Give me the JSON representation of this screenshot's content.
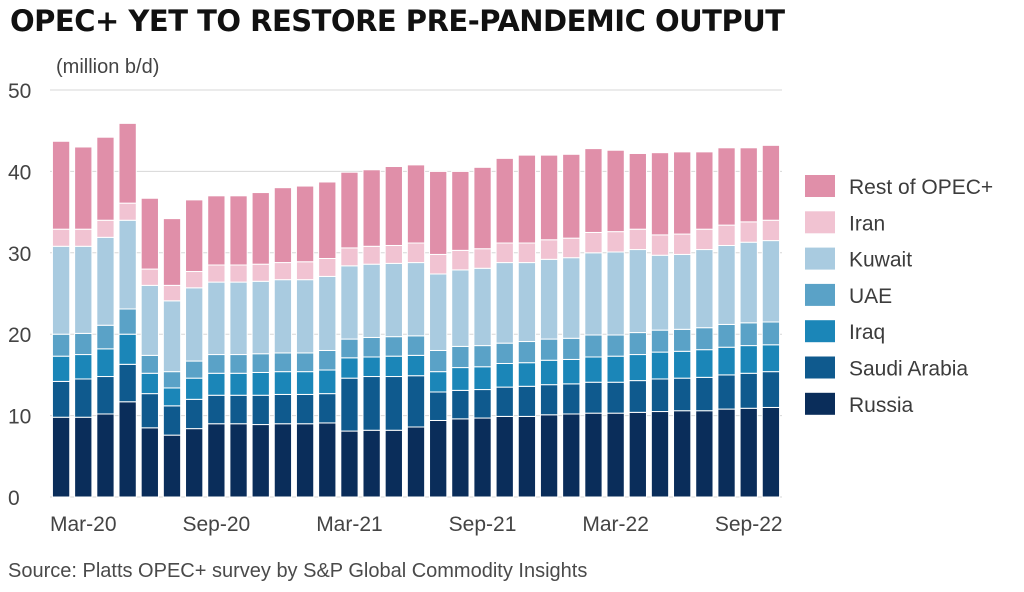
{
  "chart_data": {
    "type": "bar",
    "stacked": true,
    "title": "OPEC+ YET TO RESTORE PRE-PANDEMIC OUTPUT",
    "ylabel": "(million b/d)",
    "xlabel": "",
    "ylim": [
      0,
      50
    ],
    "yticks": [
      0,
      10,
      20,
      30,
      40,
      50
    ],
    "grid": true,
    "legend_position": "right",
    "source": "Source: Platts OPEC+ survey by S&P Global Commodity Insights",
    "x_tick_labels": [
      {
        "index": 1,
        "label": "Mar-20"
      },
      {
        "index": 7,
        "label": "Sep-20"
      },
      {
        "index": 13,
        "label": "Mar-21"
      },
      {
        "index": 19,
        "label": "Sep-21"
      },
      {
        "index": 25,
        "label": "Mar-22"
      },
      {
        "index": 31,
        "label": "Sep-22"
      }
    ],
    "series": [
      {
        "name": "Russia",
        "color": "#0a2d5a",
        "values": [
          9.8,
          9.8,
          10.2,
          11.7,
          8.5,
          7.6,
          8.4,
          9.0,
          9.0,
          8.9,
          9.0,
          9.0,
          9.1,
          8.1,
          8.2,
          8.2,
          8.6,
          9.4,
          9.6,
          9.7,
          9.9,
          9.9,
          10.1,
          10.2,
          10.3,
          10.3,
          10.4,
          10.5,
          10.6,
          10.6,
          10.8,
          10.9,
          11.0
        ]
      },
      {
        "name": "Saudi Arabia",
        "color": "#0f5a8e",
        "values": [
          4.4,
          4.7,
          4.6,
          4.6,
          4.2,
          3.6,
          3.6,
          3.5,
          3.5,
          3.6,
          3.6,
          3.6,
          3.6,
          6.5,
          6.6,
          6.6,
          6.3,
          3.5,
          3.5,
          3.5,
          3.6,
          3.7,
          3.7,
          3.7,
          3.8,
          3.8,
          3.9,
          4.0,
          4.0,
          4.1,
          4.2,
          4.3,
          4.4
        ]
      },
      {
        "name": "Iraq",
        "color": "#1b86b8",
        "values": [
          3.1,
          3.0,
          3.4,
          3.7,
          2.5,
          2.2,
          2.6,
          2.7,
          2.7,
          2.8,
          2.8,
          2.8,
          2.9,
          2.5,
          2.4,
          2.5,
          2.5,
          2.5,
          2.8,
          2.8,
          2.9,
          2.9,
          3.0,
          3.0,
          3.1,
          3.2,
          3.2,
          3.3,
          3.3,
          3.4,
          3.4,
          3.4,
          3.3
        ]
      },
      {
        "name": "UAE",
        "color": "#5aa2c7",
        "values": [
          2.7,
          2.6,
          2.9,
          3.1,
          2.2,
          2.0,
          2.1,
          2.3,
          2.3,
          2.3,
          2.3,
          2.3,
          2.4,
          2.3,
          2.4,
          2.4,
          2.4,
          2.6,
          2.6,
          2.6,
          2.5,
          2.6,
          2.6,
          2.6,
          2.7,
          2.6,
          2.7,
          2.7,
          2.7,
          2.7,
          2.8,
          2.8,
          2.8
        ]
      },
      {
        "name": "Kuwait",
        "color": "#a9cbe0",
        "values": [
          10.8,
          10.7,
          10.8,
          10.9,
          8.6,
          8.7,
          9.0,
          8.9,
          8.9,
          8.9,
          9.0,
          9.0,
          9.1,
          9.0,
          9.0,
          9.0,
          9.0,
          9.4,
          9.4,
          9.5,
          9.9,
          9.7,
          9.8,
          9.9,
          10.1,
          10.2,
          10.2,
          9.2,
          9.2,
          9.6,
          9.7,
          9.9,
          10.0
        ]
      },
      {
        "name": "Iran",
        "color": "#f1c3d2",
        "values": [
          2.1,
          2.1,
          2.1,
          2.1,
          2.0,
          1.9,
          2.0,
          2.1,
          2.1,
          2.1,
          2.1,
          2.2,
          2.2,
          2.2,
          2.2,
          2.2,
          2.4,
          2.4,
          2.4,
          2.4,
          2.4,
          2.4,
          2.4,
          2.4,
          2.5,
          2.5,
          2.5,
          2.5,
          2.5,
          2.5,
          2.5,
          2.5,
          2.5
        ]
      },
      {
        "name": "Rest of OPEC+",
        "color": "#e08fa9",
        "values": [
          10.8,
          10.1,
          10.2,
          9.8,
          8.7,
          8.2,
          8.8,
          8.5,
          8.5,
          8.8,
          9.2,
          9.3,
          9.4,
          9.3,
          9.4,
          9.7,
          9.6,
          10.2,
          9.7,
          10.0,
          10.4,
          10.8,
          10.4,
          10.3,
          10.3,
          10.0,
          9.3,
          10.1,
          10.1,
          9.5,
          9.5,
          9.1,
          9.2
        ]
      }
    ]
  }
}
